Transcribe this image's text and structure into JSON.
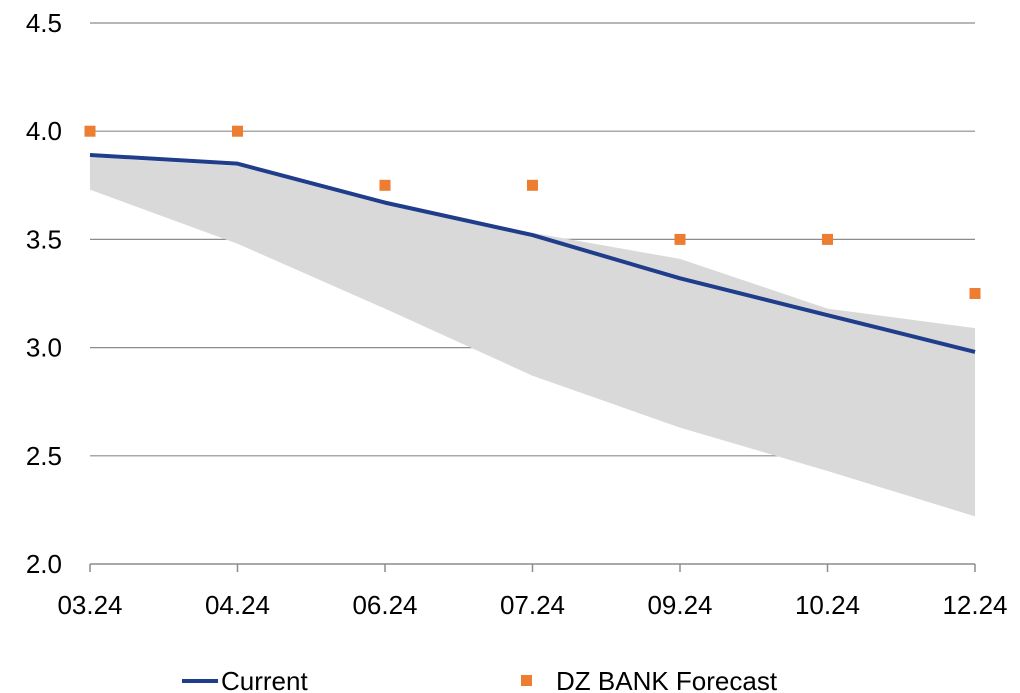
{
  "chart_data": {
    "type": "line",
    "title": "",
    "xlabel": "",
    "ylabel": "",
    "categories": [
      "03.24",
      "04.24",
      "06.24",
      "07.24",
      "09.24",
      "10.24",
      "12.24"
    ],
    "ylim": [
      2.0,
      4.5
    ],
    "yticks": [
      "2.0",
      "2.5",
      "3.0",
      "3.5",
      "4.0",
      "4.5"
    ],
    "grid": true,
    "legend_position": "bottom",
    "band": {
      "upper": [
        3.88,
        3.84,
        3.67,
        3.53,
        3.41,
        3.18,
        3.09
      ],
      "lower": [
        3.73,
        3.48,
        3.18,
        2.87,
        2.63,
        2.43,
        2.22
      ],
      "color": "#d9d9d9"
    },
    "series": [
      {
        "name": "Current",
        "kind": "line",
        "color": "#1f3d8a",
        "values": [
          3.89,
          3.85,
          3.67,
          3.52,
          3.32,
          3.15,
          2.98
        ]
      },
      {
        "name": "DZ BANK Forecast",
        "kind": "marker",
        "color": "#ed7d31",
        "values": [
          4.0,
          4.0,
          3.75,
          3.75,
          3.5,
          3.5,
          3.25
        ]
      }
    ]
  }
}
